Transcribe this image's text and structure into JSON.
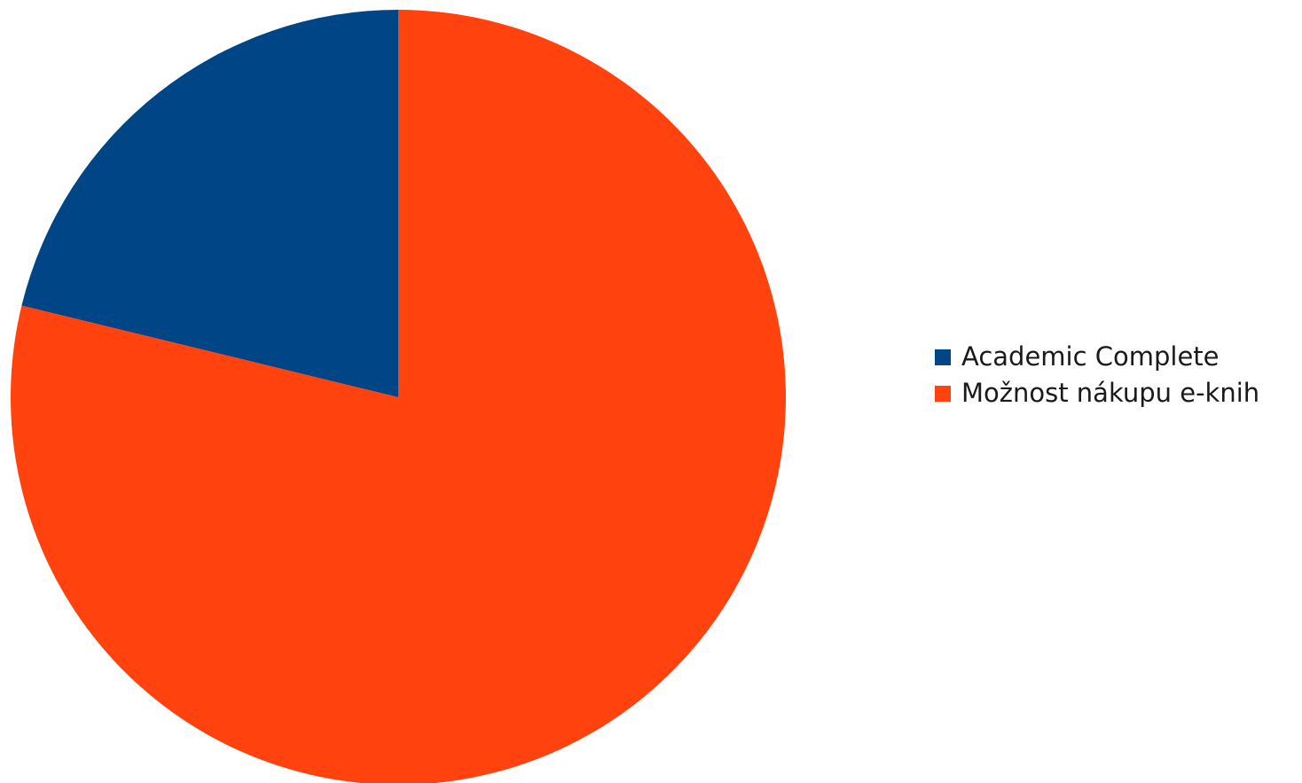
{
  "chart_data": {
    "type": "pie",
    "title": "",
    "series": [
      {
        "name": "Academic Complete",
        "value": 21.2,
        "color": "#004586"
      },
      {
        "name": "Možnost nákupu e-knih",
        "value": 78.8,
        "color": "#ff420e"
      }
    ],
    "legend_position": "right",
    "start_angle_deg": 0,
    "direction": "counterclockwise"
  }
}
